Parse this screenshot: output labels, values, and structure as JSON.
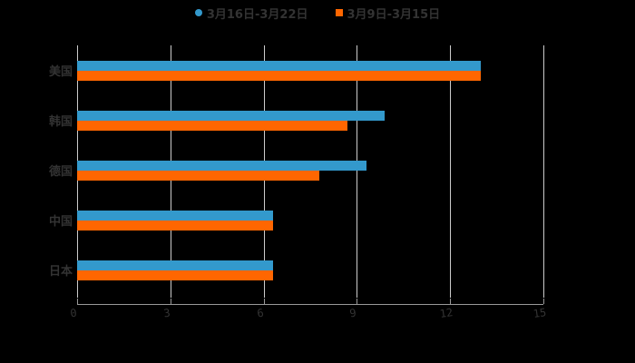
{
  "chart_data": {
    "type": "bar",
    "orientation": "horizontal",
    "title": "",
    "xlabel": "",
    "ylabel": "",
    "categories": [
      "美国",
      "韩国",
      "德国",
      "中国",
      "日本"
    ],
    "series": [
      {
        "name": "3月16日-3月22日",
        "color": "#3399cc",
        "marker": "circle",
        "values": [
          13.0,
          9.9,
          9.3,
          6.3,
          6.3
        ]
      },
      {
        "name": "3月9日-3月15日",
        "color": "#ff6600",
        "marker": "square",
        "values": [
          13.0,
          8.7,
          7.8,
          6.3,
          6.3
        ]
      }
    ],
    "xlim": [
      0,
      15
    ],
    "xticks": [
      "0",
      "3",
      "6",
      "9",
      "12",
      "15"
    ],
    "grid": true,
    "legend_position": "top",
    "background": "#000000"
  },
  "legend": {
    "items": [
      {
        "label": "3月16日-3月22日",
        "color": "#3399cc"
      },
      {
        "label": "3月9日-3月15日",
        "color": "#ff6600"
      }
    ]
  },
  "axis": {
    "x_ticks": [
      "0",
      "3",
      "6",
      "9",
      "12",
      "15"
    ],
    "y_labels": [
      "美国",
      "韩国",
      "德国",
      "中国",
      "日本"
    ]
  }
}
